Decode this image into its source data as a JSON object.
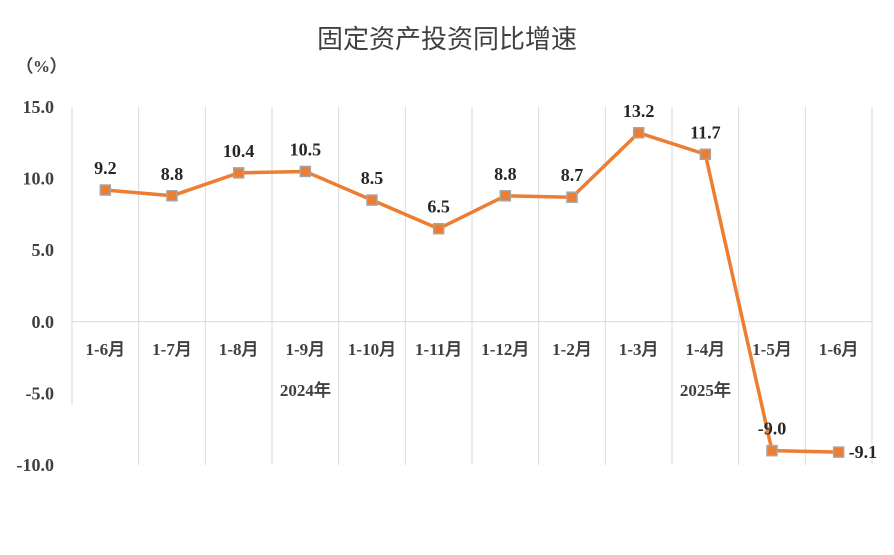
{
  "chart_data": {
    "type": "line",
    "title": "固定资产投资同比增速",
    "unit_label": "（%）",
    "ylim": [
      -10.0,
      15.0
    ],
    "yticks": [
      "15.0",
      "10.0",
      "5.0",
      "0.0",
      "-5.0",
      "-10.0"
    ],
    "ytick_values": [
      15,
      10,
      5,
      0,
      -5,
      -10
    ],
    "categories": [
      "1-6月",
      "1-7月",
      "1-8月",
      "1-9月",
      "1-10月",
      "1-11月",
      "1-12月",
      "1-2月",
      "1-3月",
      "1-4月",
      "1-5月",
      "1-6月"
    ],
    "groups": [
      {
        "label": "2024年",
        "start": 0,
        "end": 6
      },
      {
        "label": "2025年",
        "start": 7,
        "end": 11
      }
    ],
    "series": [
      {
        "values": [
          9.2,
          8.8,
          10.4,
          10.5,
          8.5,
          6.5,
          8.8,
          8.7,
          13.2,
          11.7,
          -9.0,
          -9.1
        ],
        "labels": [
          "9.2",
          "8.8",
          "10.4",
          "10.5",
          "8.5",
          "6.5",
          "8.8",
          "8.7",
          "13.2",
          "11.7",
          "-9.0",
          "-9.1"
        ],
        "color": "#ed7d31"
      }
    ],
    "grid": "vertical",
    "legend": "none"
  }
}
